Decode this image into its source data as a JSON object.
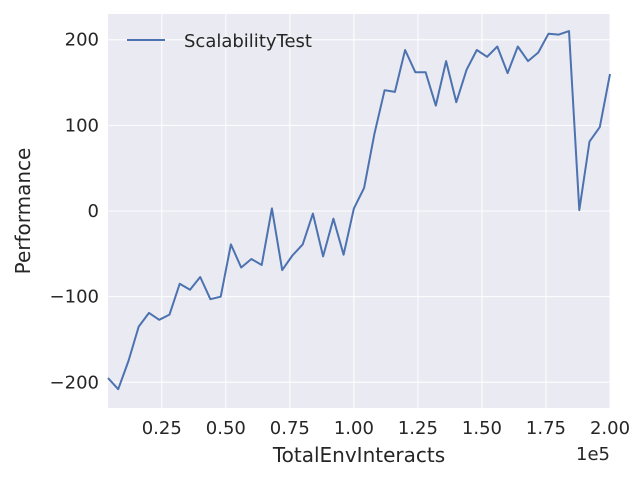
{
  "chart_data": {
    "type": "line",
    "xlabel": "TotalEnvInteracts",
    "ylabel": "Performance",
    "x_offset_label": "1e5",
    "xlim": [
      0.04,
      2.0
    ],
    "ylim": [
      -230,
      230
    ],
    "x_scale_factor": 100000,
    "x_ticks": [
      0.25,
      0.5,
      0.75,
      1.0,
      1.25,
      1.5,
      1.75,
      2.0
    ],
    "x_tick_labels": [
      "0.25",
      "0.50",
      "0.75",
      "1.00",
      "1.25",
      "1.50",
      "1.75",
      "2.00"
    ],
    "y_ticks": [
      -200,
      -100,
      0,
      100,
      200
    ],
    "y_tick_labels": [
      "−200",
      "−100",
      "0",
      "100",
      "200"
    ],
    "grid": true,
    "legend_position": "top-left",
    "colors": {
      "background": "#EAEAF2",
      "grid": "#FFFFFF",
      "series": "#4C72B0"
    },
    "series": [
      {
        "name": "ScalabilityTest",
        "x": [
          0.04,
          0.08,
          0.12,
          0.16,
          0.2,
          0.24,
          0.28,
          0.32,
          0.36,
          0.4,
          0.44,
          0.48,
          0.52,
          0.56,
          0.6,
          0.64,
          0.68,
          0.72,
          0.76,
          0.8,
          0.84,
          0.88,
          0.92,
          0.96,
          1.0,
          1.04,
          1.08,
          1.12,
          1.16,
          1.2,
          1.24,
          1.28,
          1.32,
          1.36,
          1.4,
          1.44,
          1.48,
          1.52,
          1.56,
          1.6,
          1.64,
          1.68,
          1.72,
          1.76,
          1.8,
          1.84,
          1.88,
          1.92,
          1.96,
          2.0
        ],
        "values": [
          -195,
          -208,
          -175,
          -135,
          -119,
          -127,
          -121,
          -85,
          -92,
          -77,
          -103,
          -100,
          -39,
          -66,
          -56,
          -63,
          3,
          -69,
          -52,
          -39,
          -3,
          -53,
          -9,
          -51,
          3,
          27,
          90,
          141,
          139,
          188,
          162,
          162,
          123,
          175,
          127,
          165,
          188,
          180,
          192,
          161,
          192,
          175,
          185,
          207,
          206,
          210,
          1,
          81,
          98,
          160
        ]
      }
    ]
  }
}
